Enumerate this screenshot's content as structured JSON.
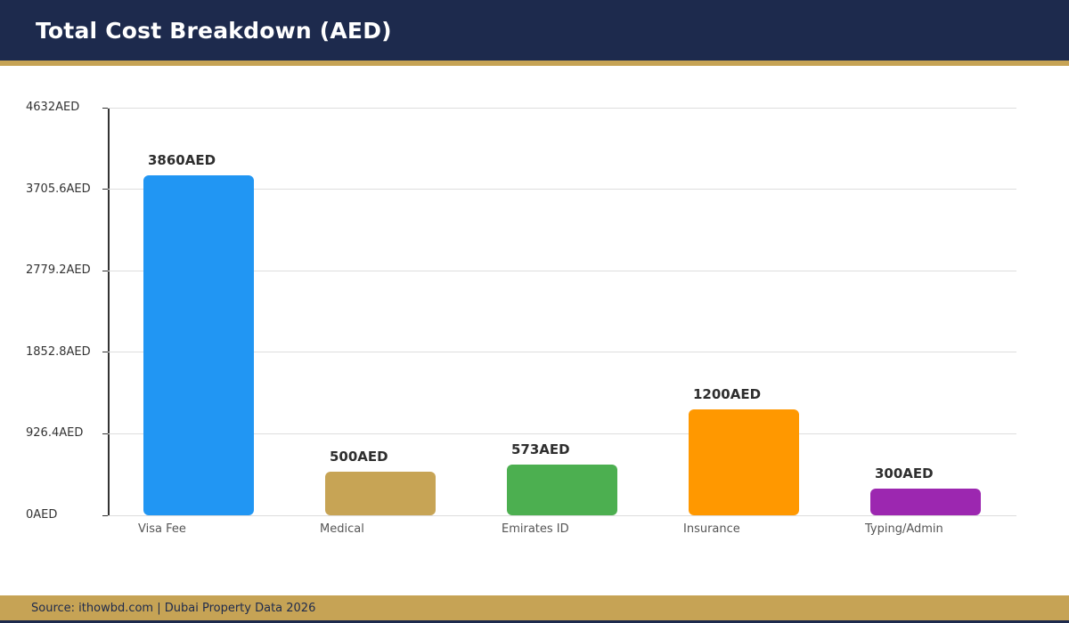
{
  "header": {
    "title": "Total Cost Breakdown (AED)"
  },
  "footer": {
    "source_text": "Source: ithowbd.com | Dubai Property Data 2026"
  },
  "colors": {
    "header_navy": "#1d2a4d",
    "accent_gold": "#c6a355",
    "axis": "#333333",
    "gridline": "#dddddd",
    "value_label": "#2e2e2e",
    "category_label": "#555555"
  },
  "chart_data": {
    "type": "bar",
    "title": "Total Cost Breakdown (AED)",
    "categories": [
      "Visa Fee",
      "Medical",
      "Emirates ID",
      "Insurance",
      "Typing/Admin"
    ],
    "values": [
      3860,
      500,
      573,
      1200,
      300
    ],
    "value_labels": [
      "3860AED",
      "500AED",
      "573AED",
      "1200AED",
      "300AED"
    ],
    "bar_colors": [
      "#2196f3",
      "#c7a455",
      "#4caf50",
      "#ff9800",
      "#9c27b0"
    ],
    "xlabel": "",
    "ylabel": "",
    "ylim": [
      0,
      4632
    ],
    "yticks": [
      0,
      926.4,
      1852.8,
      2779.2,
      3705.6,
      4632
    ],
    "ytick_labels": [
      "0AED",
      "926.4AED",
      "1852.8AED",
      "2779.2AED",
      "3705.6AED",
      "4632AED"
    ],
    "grid": true,
    "legend": false
  }
}
